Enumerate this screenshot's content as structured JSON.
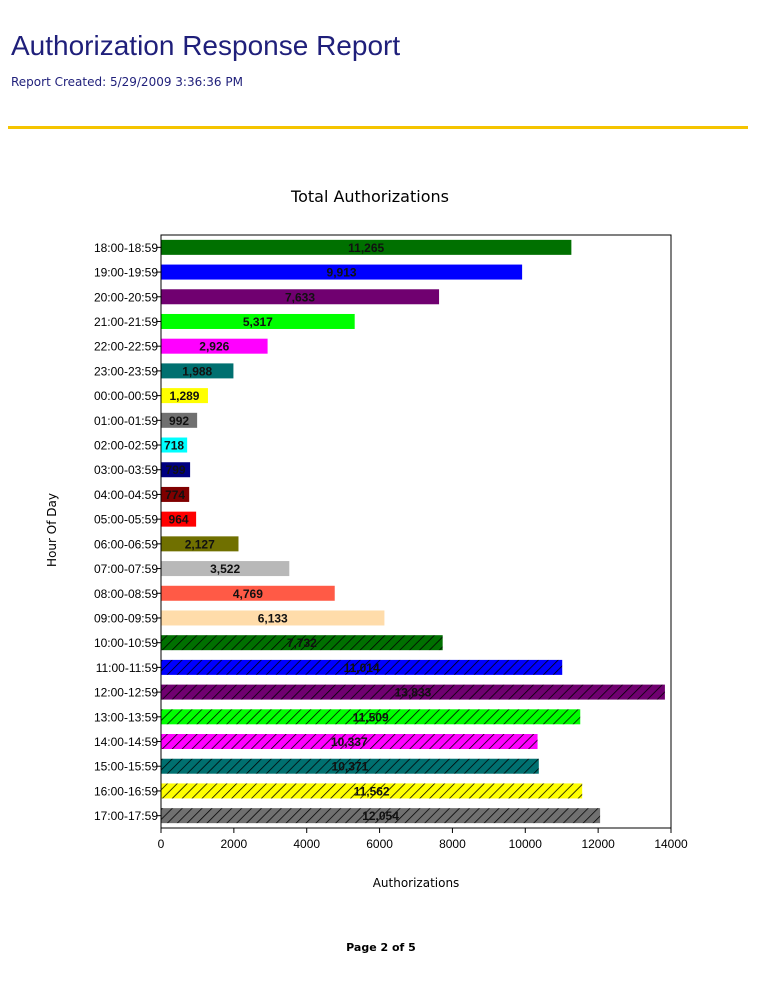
{
  "header": {
    "title": "Authorization Response Report",
    "created": "Report Created: 5/29/2009 3:36:36 PM"
  },
  "footer": {
    "page": "Page 2 of 5"
  },
  "chart_data": {
    "type": "bar",
    "orientation": "horizontal",
    "title": "Total Authorizations",
    "xlabel": "Authorizations",
    "ylabel": "Hour Of Day",
    "xlim": [
      0,
      14000
    ],
    "xticks": [
      0,
      2000,
      4000,
      6000,
      8000,
      10000,
      12000,
      14000
    ],
    "categories": [
      "18:00-18:59",
      "19:00-19:59",
      "20:00-20:59",
      "21:00-21:59",
      "22:00-22:59",
      "23:00-23:59",
      "00:00-00:59",
      "01:00-01:59",
      "02:00-02:59",
      "03:00-03:59",
      "04:00-04:59",
      "05:00-05:59",
      "06:00-06:59",
      "07:00-07:59",
      "08:00-08:59",
      "09:00-09:59",
      "10:00-10:59",
      "11:00-11:59",
      "12:00-12:59",
      "13:00-13:59",
      "14:00-14:59",
      "15:00-15:59",
      "16:00-16:59",
      "17:00-17:59"
    ],
    "values": [
      11265,
      9913,
      7633,
      5317,
      2926,
      1988,
      1289,
      992,
      718,
      799,
      774,
      964,
      2127,
      3522,
      4769,
      6133,
      7732,
      11014,
      13833,
      11509,
      10337,
      10371,
      11562,
      12054
    ],
    "labels": [
      "11,265",
      "9,913",
      "7,633",
      "5,317",
      "2,926",
      "1,988",
      "1,289",
      "992",
      "718",
      "799",
      "774",
      "964",
      "2,127",
      "3,522",
      "4,769",
      "6,133",
      "7,732",
      "11,014",
      "13,833",
      "11,509",
      "10,337",
      "10,371",
      "11,562",
      "12,054"
    ],
    "colors": [
      "#007000",
      "#0000ff",
      "#700070",
      "#00ff00",
      "#ff00ff",
      "#007070",
      "#ffff00",
      "#707070",
      "#00ffff",
      "#000080",
      "#800000",
      "#ff0000",
      "#707000",
      "#b8b8b8",
      "#ff5a46",
      "#ffdcaa",
      "#007000",
      "#0000ff",
      "#700070",
      "#00ff00",
      "#ff00ff",
      "#007070",
      "#ffff00",
      "#707070"
    ],
    "hatched": [
      false,
      false,
      false,
      false,
      false,
      false,
      false,
      false,
      false,
      false,
      false,
      false,
      false,
      false,
      false,
      false,
      true,
      true,
      true,
      true,
      true,
      true,
      true,
      true
    ]
  }
}
